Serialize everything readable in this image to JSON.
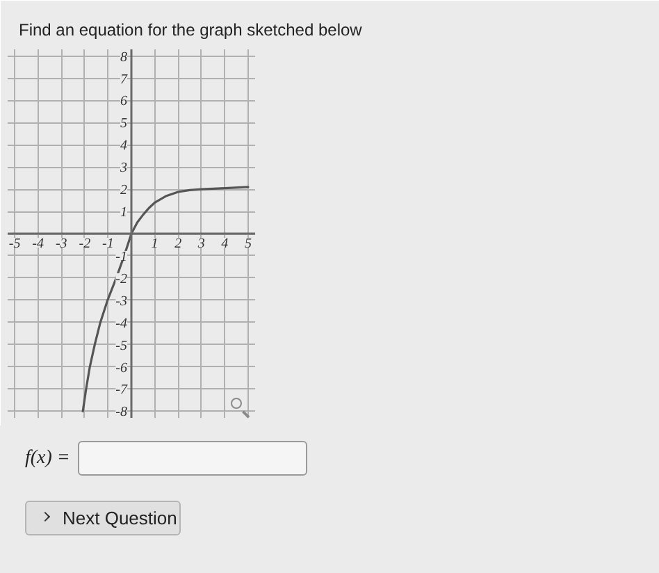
{
  "chart_data": {
    "type": "line",
    "title": "Find an equation for the graph sketched below",
    "x": [
      -2.08,
      -1.94,
      -1.78,
      -1.57,
      -1.33,
      -1.02,
      -0.65,
      -0.31,
      0,
      0.25,
      0.5,
      0.75,
      1,
      1.5,
      2,
      2.5,
      3,
      4,
      5
    ],
    "values": [
      -8,
      -7,
      -6,
      -5,
      -4,
      -3,
      -2,
      -1,
      0,
      0.5,
      0.85,
      1.15,
      1.4,
      1.7,
      1.88,
      1.96,
      2.0,
      2.05,
      2.1
    ],
    "color": "#555555",
    "xlim": [
      -5.3,
      5.3
    ],
    "ylim": [
      -8.3,
      8.3
    ],
    "xticks": [
      -5,
      -4,
      -3,
      -2,
      -1,
      {
        "value": 0,
        "label": null
      },
      1,
      2,
      3,
      4,
      5
    ],
    "yticks": [
      -8,
      -7,
      -6,
      -5,
      -4,
      -3,
      -2,
      -1,
      {
        "value": 0,
        "label": null
      },
      1,
      2,
      3,
      4,
      5,
      6,
      7,
      8
    ],
    "grid": true,
    "annotations": [
      "f(x) =",
      "Next Question"
    ]
  }
}
